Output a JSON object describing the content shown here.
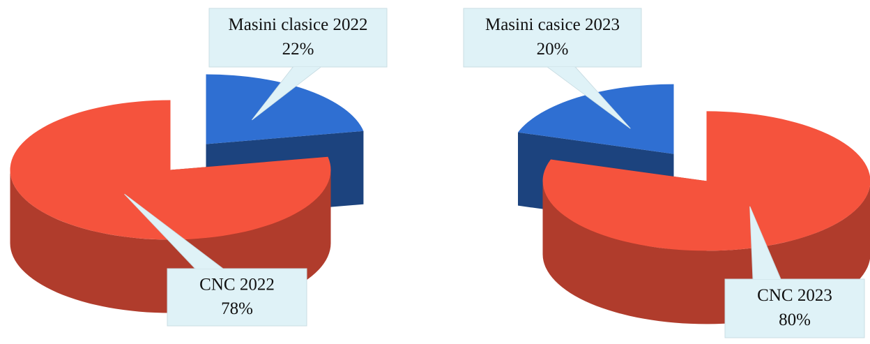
{
  "chart_data": [
    {
      "type": "pie",
      "categories": [
        "Masini clasice 2022",
        "CNC 2022"
      ],
      "values": [
        22,
        78
      ],
      "value_labels": [
        "22%",
        "78%"
      ],
      "colors": [
        "#2f6fd2",
        "#f5533d"
      ]
    },
    {
      "type": "pie",
      "categories": [
        "Masini casice 2023",
        "CNC 2023"
      ],
      "values": [
        20,
        80
      ],
      "value_labels": [
        "20%",
        "80%"
      ],
      "colors": [
        "#2f6fd2",
        "#f5533d"
      ]
    }
  ]
}
